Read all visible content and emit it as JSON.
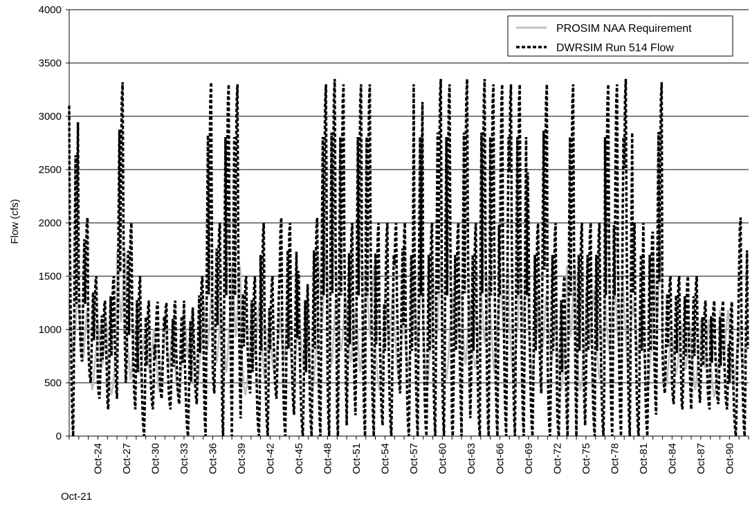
{
  "chart_data": {
    "type": "line",
    "title": "",
    "xlabel": "",
    "ylabel": "Flow (cfs)",
    "ylim": [
      0,
      4000
    ],
    "yticks": [
      0,
      500,
      1000,
      1500,
      2000,
      2500,
      3000,
      3500,
      4000
    ],
    "xlim": [
      "Oct-21",
      "Sep-92"
    ],
    "x_first_label": "Oct-21",
    "xtick_labels": [
      "Oct-24",
      "Oct-27",
      "Oct-30",
      "Oct-33",
      "Oct-36",
      "Oct-39",
      "Oct-42",
      "Oct-45",
      "Oct-48",
      "Oct-51",
      "Oct-54",
      "Oct-57",
      "Oct-60",
      "Oct-63",
      "Oct-66",
      "Oct-69",
      "Oct-72",
      "Oct-75",
      "Oct-78",
      "Oct-81",
      "Oct-84",
      "Oct-87",
      "Oct-90"
    ],
    "grid": "horizontal",
    "legend_position": "top-right",
    "series": [
      {
        "name": "PROSIM NAA Requirement",
        "color": "#c0c0c0",
        "style": "solid",
        "annual_pattern": [
          [
            1000,
            900,
            800,
            700,
            650,
            600,
            650,
            700,
            800,
            900,
            1000,
            950
          ],
          [
            1100,
            1000,
            900,
            800,
            700,
            650,
            700,
            800,
            900,
            1000,
            1100,
            1050
          ],
          [
            900,
            800,
            700,
            600,
            500,
            450,
            500,
            600,
            700,
            800,
            900,
            850
          ],
          [
            1200,
            1100,
            1000,
            900,
            800,
            700,
            750,
            900,
            1000,
            1100,
            1200,
            1150
          ],
          [
            800,
            700,
            600,
            500,
            450,
            400,
            450,
            500,
            600,
            700,
            800,
            750
          ],
          [
            1300,
            1200,
            1100,
            1000,
            900,
            800,
            850,
            1000,
            1100,
            1200,
            1300,
            1250
          ],
          [
            950,
            850,
            750,
            650,
            550,
            500,
            550,
            650,
            750,
            850,
            950,
            900
          ]
        ]
      },
      {
        "name": "DWRSIM Run 514 Flow",
        "color": "#000000",
        "style": "dashed",
        "annual_peaks": [
          3100,
          2050,
          1500,
          1270,
          1500,
          3320,
          2000,
          1500,
          1270,
          1260,
          1250,
          1270,
          1270,
          1500,
          3320,
          2000,
          3300,
          3300,
          1500,
          1500,
          2000,
          1500,
          2050,
          2000,
          1500,
          2050,
          3300,
          3350,
          3300,
          2000,
          3300,
          3300,
          2000,
          2000,
          2000,
          2000,
          3300,
          2000,
          3350,
          3300,
          2000,
          3350,
          2000,
          3350,
          3300,
          3300,
          3300,
          3300,
          2000,
          3300,
          2000,
          1500,
          3300,
          2000,
          2000,
          2000,
          3300,
          3300,
          3350,
          2000,
          2000,
          3320,
          1500,
          1500,
          1500,
          1500,
          1270,
          1270,
          1270,
          1260,
          2050
        ],
        "annual_troughs": [
          0,
          700,
          500,
          350,
          250,
          350,
          250,
          0,
          250,
          350,
          250,
          300,
          0,
          300,
          0,
          400,
          0,
          0,
          400,
          0,
          0,
          350,
          0,
          200,
          0,
          0,
          0,
          0,
          0,
          100,
          0,
          0,
          100,
          0,
          400,
          0,
          0,
          0,
          0,
          0,
          0,
          0,
          0,
          0,
          0,
          0,
          0,
          0,
          0,
          400,
          0,
          0,
          0,
          0,
          0,
          0,
          0,
          0,
          0,
          0,
          0,
          200,
          400,
          300,
          250,
          250,
          250,
          300,
          250,
          0,
          0
        ]
      }
    ]
  }
}
